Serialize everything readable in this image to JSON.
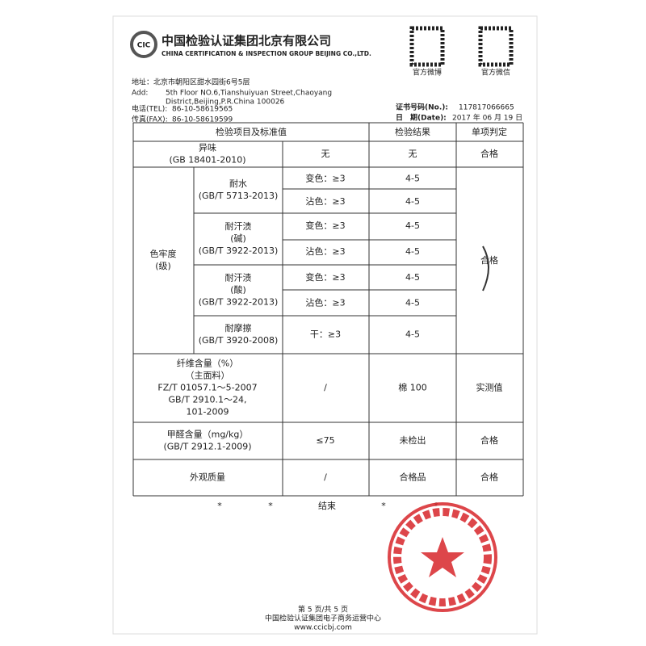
{
  "header": {
    "company_cn": "中国检验认证集团北京有限公司",
    "company_en": "CHINA CERTIFICATION & INSPECTION GROUP BEIJING CO.,LTD.",
    "qr_labels": [
      "官方微博",
      "官方微信"
    ]
  },
  "contact": {
    "address_cn": "地址：北京市朝阳区甜水园街6号5层",
    "add_label": "Add:",
    "add_line1": "5th Floor NO.6,Tianshuiyuan Street,Chaoyang",
    "add_line2": "District,Beijing,P.R.China   100026",
    "tel_label": "电话(TEL):",
    "tel": "86-10-58619565",
    "fax_label": "传真(FAX):",
    "fax": "86-10-58619599"
  },
  "certificate": {
    "no_label": "证书号码(No.):",
    "no": "117817066665",
    "date_label": "日　期(Date):",
    "date": "2017 年 06 月 19 日"
  },
  "table": {
    "header": [
      "检验项目及标准值",
      "检验结果",
      "单项判定"
    ],
    "odor": {
      "lines": [
        "异味",
        "(GB 18401-2010)"
      ],
      "standard": "无",
      "result": "无",
      "judgment": "合格"
    },
    "color_fastness": {
      "lines": [
        "色牢度",
        "(级)"
      ],
      "judgment": "合格",
      "tests": [
        {
          "lines": [
            "耐水",
            "(GB/T 5713-2013)"
          ],
          "checks": [
            {
              "label": "变色：≥3",
              "result": "4-5"
            },
            {
              "label": "沾色：≥3",
              "result": "4-5"
            }
          ]
        },
        {
          "lines": [
            "耐汗渍",
            "(碱)",
            "(GB/T 3922-2013)"
          ],
          "checks": [
            {
              "label": "变色：≥3",
              "result": "4-5"
            },
            {
              "label": "沾色：≥3",
              "result": "4-5"
            }
          ]
        },
        {
          "lines": [
            "耐汗渍",
            "(酸)",
            "(GB/T 3922-2013)"
          ],
          "checks": [
            {
              "label": "变色：≥3",
              "result": "4-5"
            },
            {
              "label": "沾色：≥3",
              "result": "4-5"
            }
          ]
        },
        {
          "lines": [
            "耐摩擦",
            "(GB/T 3920-2008)"
          ],
          "checks": [
            {
              "label": "干：≥3",
              "result": "4-5"
            }
          ]
        }
      ]
    },
    "fiber": {
      "lines": [
        "纤维含量（%）",
        "（主面料）",
        "FZ/T 01057.1～5-2007",
        "GB/T 2910.1～24,",
        "101-2009"
      ],
      "standard": "/",
      "result": "棉 100",
      "judgment": "实测值"
    },
    "formaldehyde": {
      "lines": [
        "甲醛含量（mg/kg）",
        "(GB/T 2912.1-2009)"
      ],
      "standard": "≤75",
      "result": "未检出",
      "judgment": "合格"
    },
    "appearance": {
      "lines": [
        "外观质量"
      ],
      "standard": "/",
      "result": "合格品",
      "judgment": "合格"
    }
  },
  "end_marks": [
    "*",
    "*",
    "结束",
    "*",
    "*"
  ],
  "footer": {
    "page": "第 5 页/共 5 页",
    "center": "中国检验认证集团电子商务运营中心",
    "url": "www.ccicbj.com"
  }
}
